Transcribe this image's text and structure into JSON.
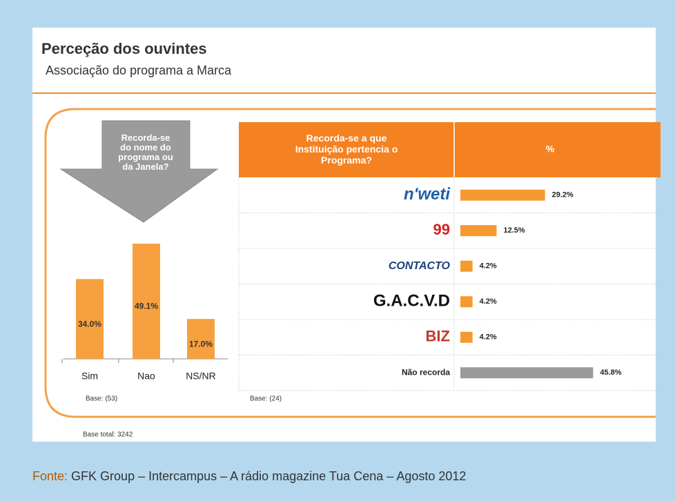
{
  "title": "Perceção dos ouvintes",
  "subtitle": "Associação do programa a Marca",
  "base_total": "Base total: 3242",
  "source_label": "Fonte:",
  "source": "GFK Group – Intercampus – A rádio magazine Tua Cena – Agosto 2012",
  "chart_data": [
    {
      "type": "bar",
      "title": "Recorda-se do nome do programa ou da Janela?",
      "categories": [
        "Sim",
        "Nao",
        "NS/NR"
      ],
      "values": [
        34.0,
        49.1,
        17.0
      ],
      "value_labels": [
        "34.0%",
        "49.1%",
        "17.0%"
      ],
      "color": "#f7a040",
      "base": "Base: (53)"
    },
    {
      "type": "hbar",
      "title": "Recorda-se a que Instituição pertencia o Programa?",
      "value_header": "%",
      "categories": [
        "n'weti",
        "99",
        "CONTACTO",
        "G.A.C.V.D",
        "BIZ",
        "Não recorda"
      ],
      "values": [
        29.2,
        12.5,
        4.2,
        4.2,
        4.2,
        45.8
      ],
      "value_labels": [
        "29.2%",
        "12.5%",
        "4.2%",
        "4.2%",
        "4.2%",
        "45.8%"
      ],
      "colors": [
        "#f59a30",
        "#f59a30",
        "#f59a30",
        "#f59a30",
        "#f59a30",
        "#9a9a9a"
      ],
      "base": "Base: (24)"
    }
  ]
}
